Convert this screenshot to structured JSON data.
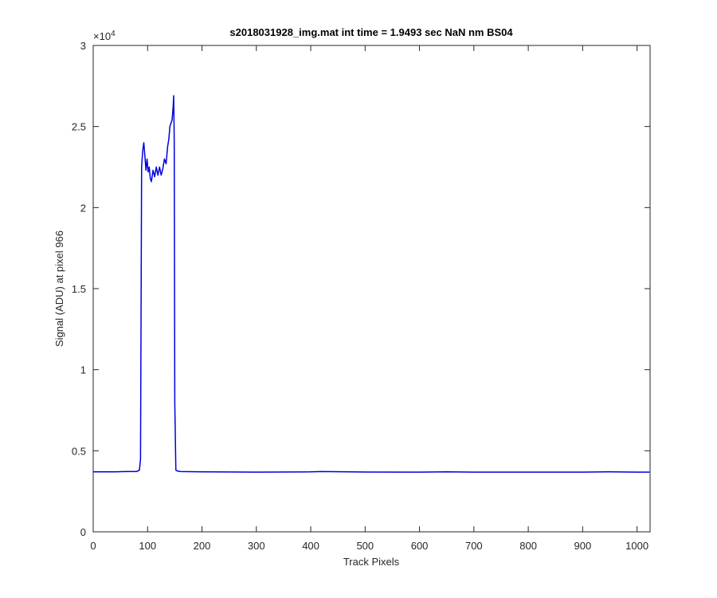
{
  "chart_data": {
    "type": "line",
    "title": "s2018031928_img.mat int time = 1.9493 sec  NaN nm BS04",
    "xlabel": "Track Pixels",
    "ylabel": "Signal (ADU) at pixel 966",
    "y_multiplier": "×10",
    "y_multiplier_exponent": "4",
    "xlim": [
      0,
      1024
    ],
    "ylim": [
      0,
      30000
    ],
    "xticks": [
      0,
      100,
      200,
      300,
      400,
      500,
      600,
      700,
      800,
      900,
      1000
    ],
    "yticks": [
      0,
      {
        "value": 5000,
        "label": "0.5"
      },
      {
        "value": 10000,
        "label": "1"
      },
      {
        "value": 15000,
        "label": "1.5"
      },
      {
        "value": 20000,
        "label": "2"
      },
      {
        "value": 25000,
        "label": "2.5"
      },
      {
        "value": 30000,
        "label": "3"
      }
    ],
    "grid": false,
    "x": [
      0,
      20,
      40,
      60,
      80,
      85,
      87,
      89,
      91,
      93,
      95,
      97,
      99,
      101,
      103,
      105,
      107,
      110,
      113,
      116,
      119,
      122,
      125,
      128,
      131,
      134,
      137,
      139,
      141,
      143,
      145,
      147,
      148,
      149,
      150,
      152,
      155,
      160,
      200,
      300,
      400,
      420,
      500,
      600,
      650,
      700,
      800,
      900,
      950,
      1000,
      1023
    ],
    "series": [
      {
        "color": "#0000e0",
        "values": [
          3700,
          3700,
          3700,
          3720,
          3720,
          3800,
          4500,
          22500,
          23500,
          24000,
          23200,
          22300,
          23000,
          22200,
          22500,
          21800,
          21600,
          22300,
          21900,
          22500,
          22000,
          22500,
          22000,
          22400,
          23000,
          22700,
          23800,
          24200,
          25000,
          25200,
          25400,
          26200,
          26900,
          24000,
          8000,
          3800,
          3750,
          3720,
          3700,
          3680,
          3700,
          3720,
          3690,
          3680,
          3700,
          3680,
          3680,
          3680,
          3700,
          3680,
          3680
        ]
      }
    ]
  }
}
